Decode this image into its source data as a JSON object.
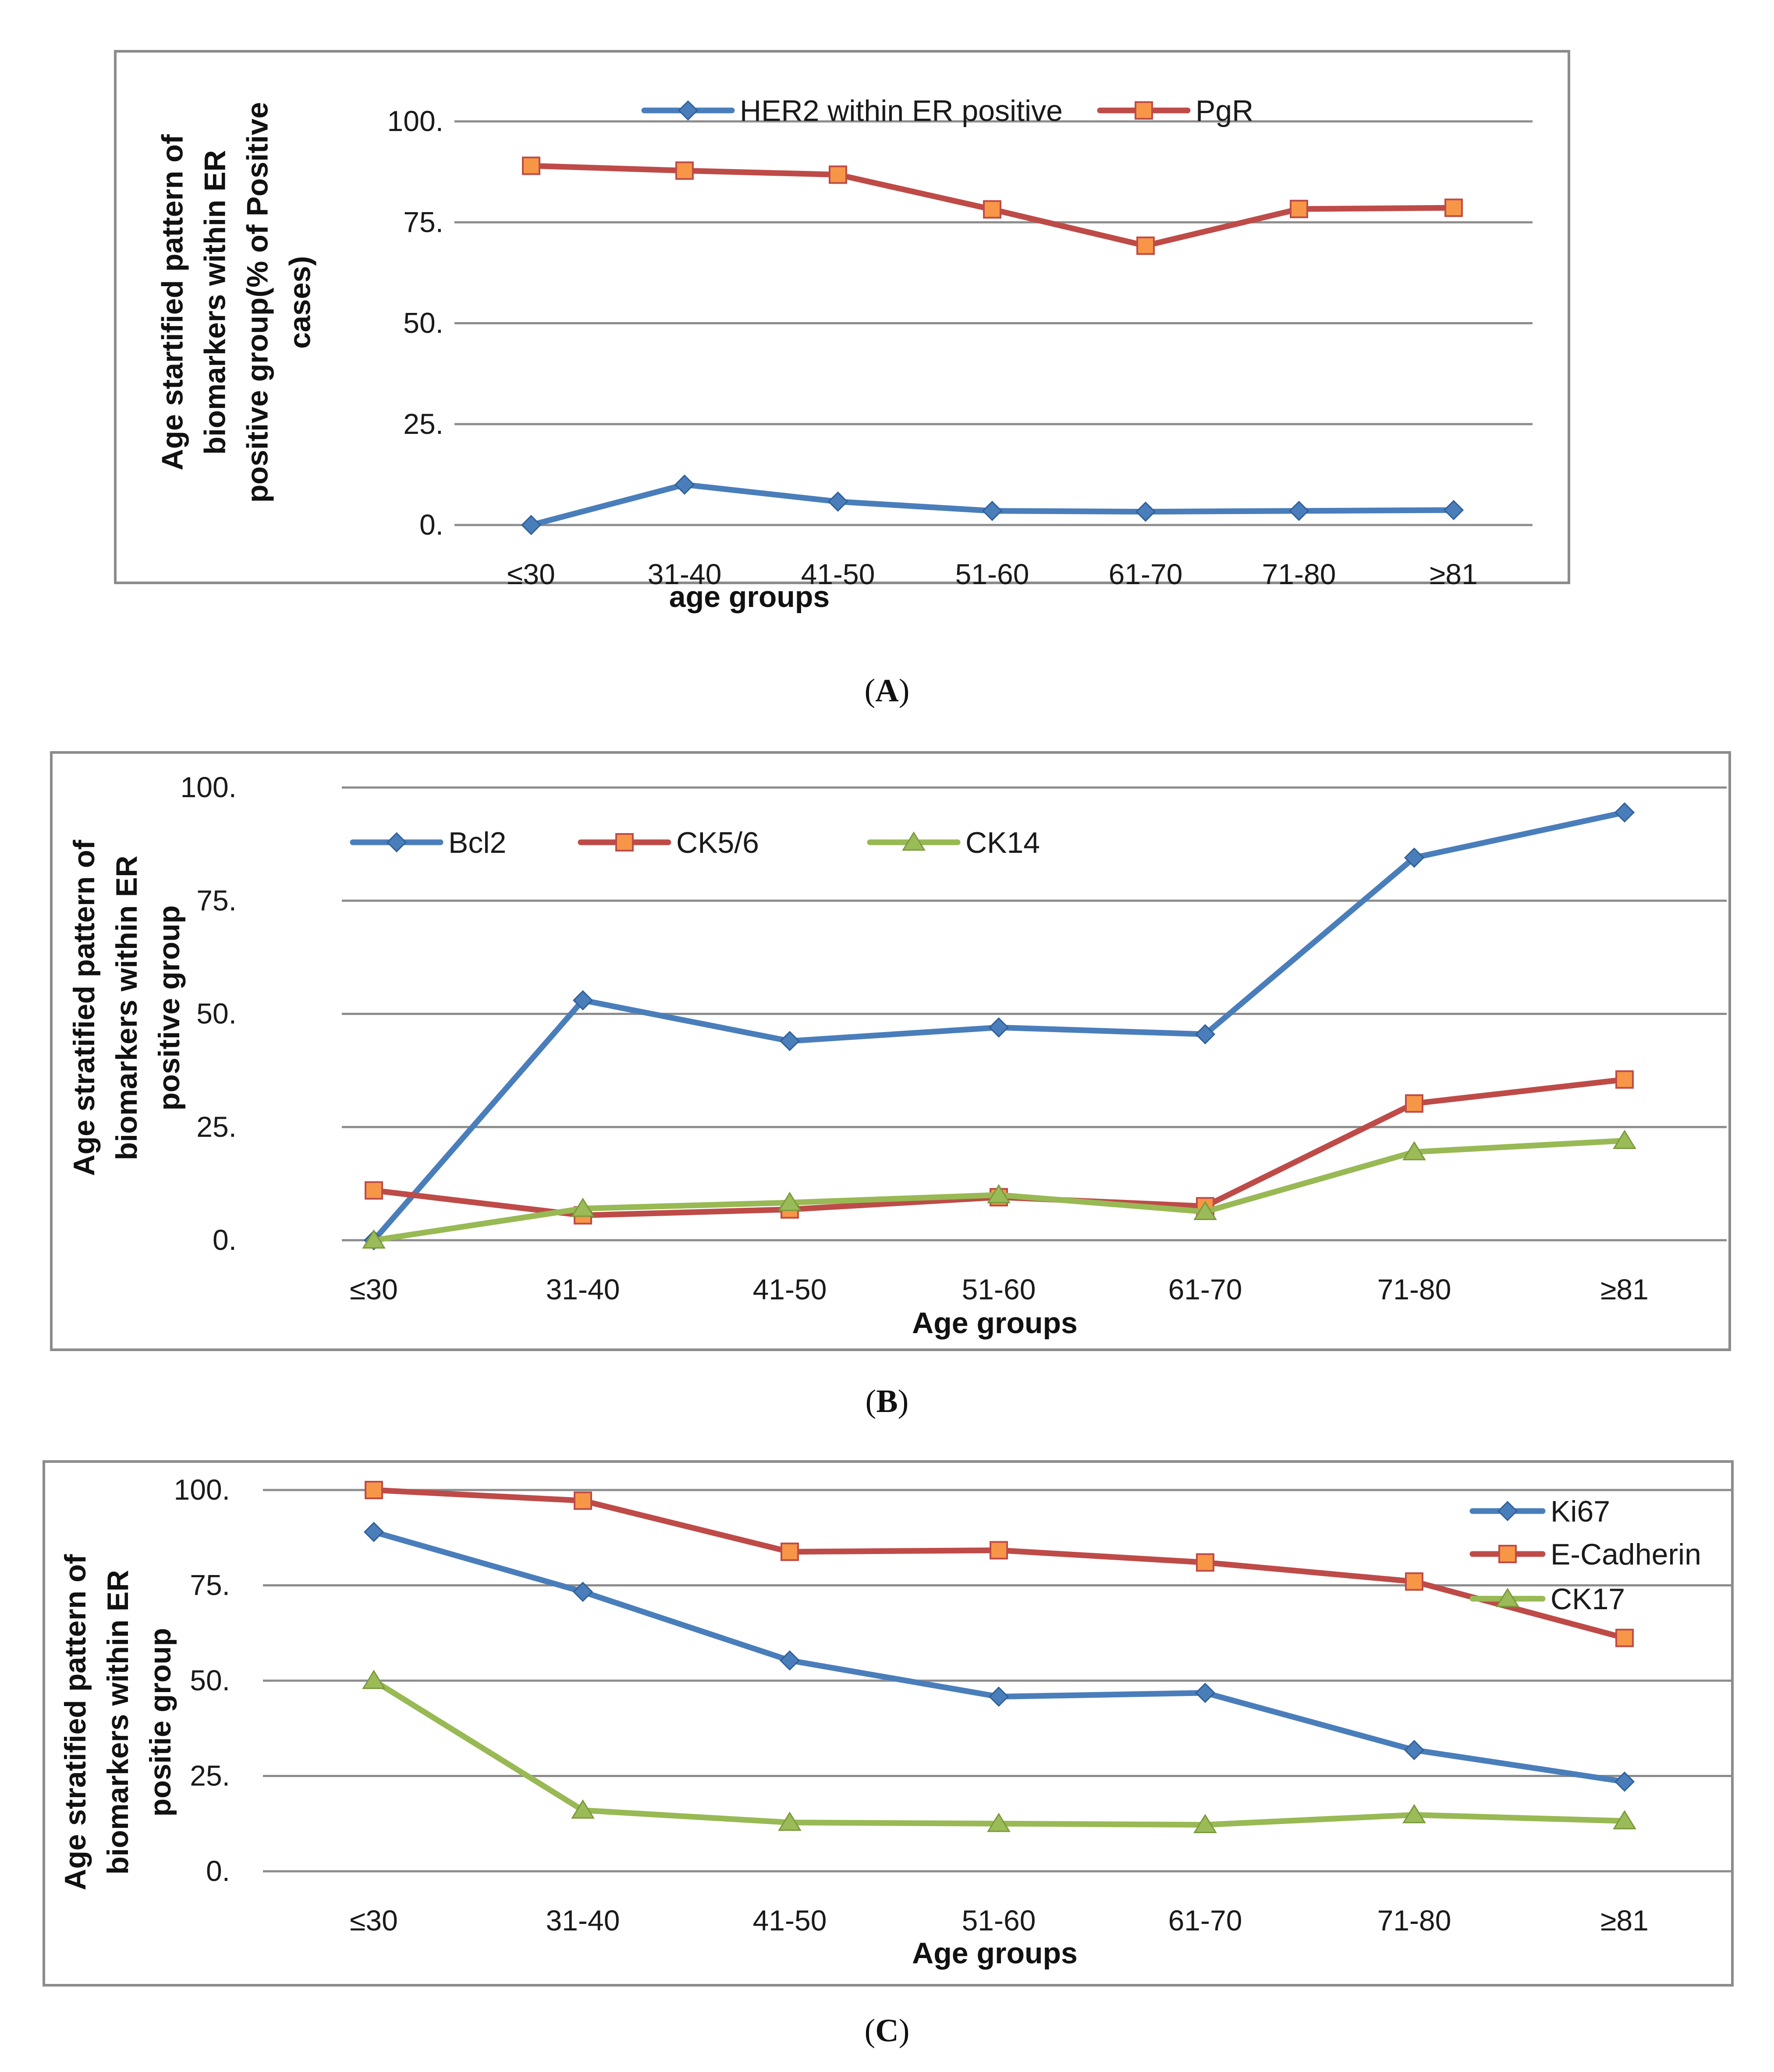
{
  "chart_data": [
    {
      "type": "line",
      "caption_letter": "A",
      "categories": [
        "≤30",
        "31-40",
        "41-50",
        "51-60",
        "61-70",
        "71-80",
        "≥81"
      ],
      "series": [
        {
          "name": "HER2 within ER positive",
          "color": "#4a7ebb",
          "marker": "diamond",
          "values": [
            0,
            10,
            5.8,
            3.5,
            3.3,
            3.5,
            3.7
          ]
        },
        {
          "name": "PgR",
          "color": "#be4b48",
          "marker": "square",
          "values": [
            89,
            87.8,
            86.8,
            78.2,
            69.2,
            78.3,
            78.6
          ]
        }
      ],
      "yticks": [
        "0.",
        "25.",
        "50.",
        "75.",
        "100."
      ],
      "ylim": [
        0,
        100
      ],
      "xlabel": "age groups",
      "ylabel_lines": [
        "Age startified pattern of",
        "biomarkers within ER",
        "positive group(% of Positive",
        "cases)"
      ],
      "legend_position": "top"
    },
    {
      "type": "line",
      "caption_letter": "B",
      "categories": [
        "≤30",
        "31-40",
        "41-50",
        "51-60",
        "61-70",
        "71-80",
        "≥81"
      ],
      "series": [
        {
          "name": "Bcl2",
          "color": "#4a7ebb",
          "marker": "diamond",
          "values": [
            0,
            53,
            44,
            47,
            45.5,
            84.5,
            94.5
          ]
        },
        {
          "name": "CK5/6",
          "color": "#be4b48",
          "marker": "square",
          "values": [
            11,
            5.5,
            6.8,
            9.5,
            7.5,
            30.2,
            35.5
          ]
        },
        {
          "name": "CK14",
          "color": "#98b954",
          "marker": "triangle",
          "values": [
            0,
            7,
            8.3,
            10,
            6.3,
            19.5,
            22
          ]
        }
      ],
      "yticks": [
        "0.",
        "25.",
        "50.",
        "75.",
        "100."
      ],
      "ylim": [
        0,
        100
      ],
      "xlabel": "Age groups",
      "ylabel_lines": [
        "Age stratified pattern of",
        "biomarkers within ER",
        "positive group"
      ],
      "legend_position": "top-left"
    },
    {
      "type": "line",
      "caption_letter": "C",
      "categories": [
        "≤30",
        "31-40",
        "41-50",
        "51-60",
        "61-70",
        "71-80",
        "≥81"
      ],
      "series": [
        {
          "name": "Ki67",
          "color": "#4a7ebb",
          "marker": "diamond",
          "values": [
            89,
            73.3,
            55.3,
            45.8,
            46.8,
            31.8,
            23.5
          ]
        },
        {
          "name": "E-Cadherin",
          "color": "#be4b48",
          "marker": "square",
          "values": [
            100,
            97.2,
            83.8,
            84.2,
            81,
            76,
            61.2
          ]
        },
        {
          "name": "CK17",
          "color": "#98b954",
          "marker": "triangle",
          "values": [
            50,
            16,
            12.8,
            12.5,
            12.2,
            14.8,
            13.2
          ]
        }
      ],
      "yticks": [
        "0.",
        "25.",
        "50.",
        "75.",
        "100."
      ],
      "ylim": [
        0,
        100
      ],
      "xlabel": "Age groups",
      "ylabel_lines": [
        "Age stratified pattern of",
        "biomarkers within ER",
        "positie group"
      ],
      "legend_position": "top-right"
    }
  ]
}
